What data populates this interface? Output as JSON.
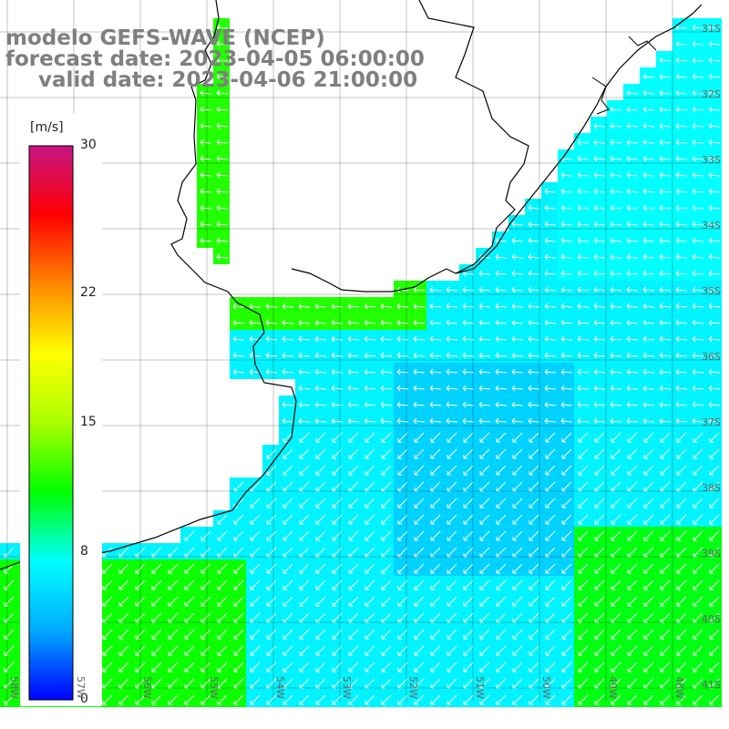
{
  "title": {
    "line1": "modelo GEFS-WAVE (NCEP)",
    "line2": "forecast date: 2023-04-05 06:00:00",
    "line3": "valid date: 2023-04-06 21:00:00"
  },
  "colorbar": {
    "unit": "[m/s]",
    "range": [
      0,
      30
    ],
    "ticks": [
      {
        "label": "30",
        "value": 30
      },
      {
        "label": "22",
        "value": 22
      },
      {
        "label": "15",
        "value": 15
      },
      {
        "label": "8",
        "value": 8
      },
      {
        "label": "0",
        "value": 0
      }
    ],
    "colors": [
      "#0000ff",
      "#00aaff",
      "#00ffff",
      "#00ff00",
      "#aaff00",
      "#ffff00",
      "#ff8800",
      "#ff0000",
      "#c71585"
    ]
  },
  "lat_labels": [
    "31S",
    "32S",
    "33S",
    "34S",
    "35S",
    "36S",
    "37S",
    "38S",
    "39S",
    "40S",
    "41S"
  ],
  "lon_labels": [
    "58W",
    "57W",
    "56W",
    "55W",
    "54W",
    "53W",
    "52W",
    "51W",
    "50W",
    "49W",
    "48W"
  ],
  "colors": {
    "land": "#ffffff",
    "coast": "#000000",
    "grid": "#000000",
    "arrow": "#ffffff",
    "title": "#7f7f7f"
  }
}
